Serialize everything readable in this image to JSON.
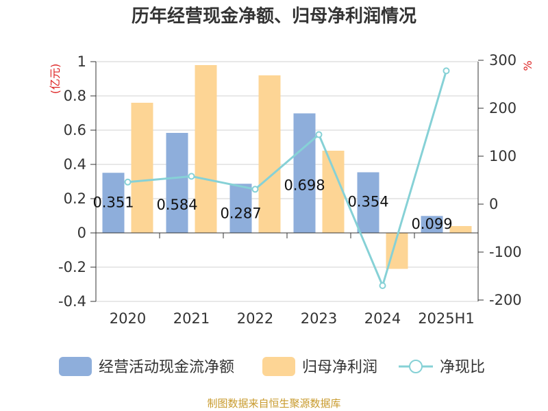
{
  "chart_data": {
    "type": "bar",
    "title": "历年经营现金净额、归母净利润情况",
    "categories": [
      "2020",
      "2021",
      "2022",
      "2023",
      "2024",
      "2025H1"
    ],
    "y_left": {
      "unit": "(亿元)",
      "ticks": [
        "1",
        "0.8",
        "0.6",
        "0.4",
        "0.2",
        "0",
        "-0.2",
        "-0.4"
      ],
      "ylim": [
        -0.4,
        1
      ]
    },
    "y_right": {
      "unit": "%",
      "ticks": [
        "300",
        "200",
        "100",
        "0",
        "-100",
        "-200"
      ],
      "ylim": [
        -200,
        300
      ]
    },
    "series": [
      {
        "name": "经营活动现金流净额",
        "kind": "bar",
        "values": [
          0.351,
          0.584,
          0.287,
          0.698,
          0.354,
          0.099
        ],
        "labels": [
          "0.351",
          "0.584",
          "0.287",
          "0.698",
          "0.354",
          "0.099"
        ]
      },
      {
        "name": "归母净利润",
        "kind": "bar",
        "values": [
          0.76,
          0.98,
          0.92,
          0.48,
          -0.21,
          0.04
        ]
      },
      {
        "name": "净现比",
        "kind": "line",
        "axis": "right",
        "values": [
          46,
          58,
          31,
          145,
          -170,
          278
        ]
      }
    ],
    "source_text": "制图数据来自恒生聚源数据库",
    "colors": {
      "cash_flow": "#8eaedb",
      "net_profit": "#fdd595",
      "ratio_line": "#86d1d6",
      "unit_text": "#dd2222",
      "source_text": "#c89a2c"
    },
    "grid": true,
    "legend_position": "bottom"
  }
}
